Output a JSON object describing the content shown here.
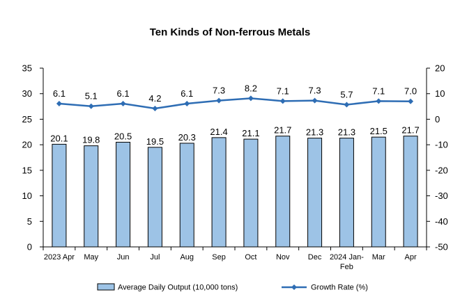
{
  "chart_data": {
    "type": "bar",
    "title": "Ten Kinds of Non-ferrous Metals",
    "categories": [
      "2023 Apr",
      "May",
      "Jun",
      "Jul",
      "Aug",
      "Sep",
      "Oct",
      "Nov",
      "Dec",
      "2024 Jan-Feb",
      "Mar",
      "Apr"
    ],
    "series": [
      {
        "name": "Average Daily Output (10,000 tons)",
        "type": "bar",
        "axis": "left",
        "values": [
          20.1,
          19.8,
          20.5,
          19.5,
          20.3,
          21.4,
          21.1,
          21.7,
          21.3,
          21.3,
          21.5,
          21.7
        ],
        "labels": [
          "20.1",
          "19.8",
          "20.5",
          "19.5",
          "20.3",
          "21.4",
          "21.1",
          "21.7",
          "21.3",
          "21.3",
          "21.5",
          "21.7"
        ],
        "color": "#9DC3E6"
      },
      {
        "name": "Growth Rate (%)",
        "type": "line",
        "axis": "right",
        "values": [
          6.1,
          5.1,
          6.1,
          4.2,
          6.1,
          7.3,
          8.2,
          7.1,
          7.3,
          5.7,
          7.1,
          7.0
        ],
        "labels": [
          "6.1",
          "5.1",
          "6.1",
          "4.2",
          "6.1",
          "7.3",
          "8.2",
          "7.1",
          "7.3",
          "5.7",
          "7.1",
          "7.0"
        ],
        "color": "#2E6DB4"
      }
    ],
    "left_axis": {
      "min": 0,
      "max": 35,
      "ticks": [
        "0",
        "5",
        "10",
        "15",
        "20",
        "25",
        "30",
        "35"
      ]
    },
    "right_axis": {
      "min": -50,
      "max": 20,
      "ticks": [
        "-50",
        "-40",
        "-30",
        "-20",
        "-10",
        "0",
        "10",
        "20"
      ]
    },
    "legend_position": "bottom",
    "grid": false
  }
}
